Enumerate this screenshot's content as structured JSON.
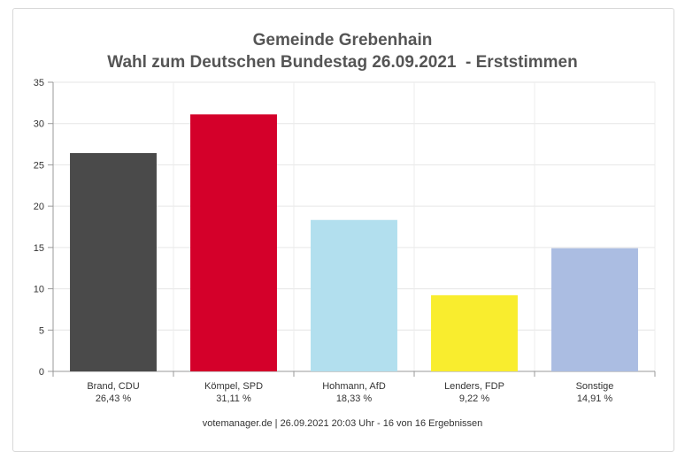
{
  "chart_data": {
    "type": "bar",
    "title": "Gemeinde Grebenhain",
    "subtitle": "Wahl zum Deutschen Bundestag 26.09.2021  - Erststimmen",
    "categories": [
      "Brand, CDU",
      "Kömpel, SPD",
      "Hohmann, AfD",
      "Lenders, FDP",
      "Sonstige"
    ],
    "value_labels": [
      "26,43 %",
      "31,11 %",
      "18,33 %",
      "9,22 %",
      "14,91 %"
    ],
    "values": [
      26.43,
      31.11,
      18.33,
      9.22,
      14.91
    ],
    "colors": [
      "#4a4a4a",
      "#d4002a",
      "#b2dfee",
      "#f9ed2e",
      "#abbde2"
    ],
    "ylim": [
      0,
      35
    ],
    "yticks": [
      0,
      5,
      10,
      15,
      20,
      25,
      30,
      35
    ],
    "grid": true,
    "legend": "none"
  },
  "footer": "votemanager.de | 26.09.2021 20:03 Uhr - 16 von 16 Ergebnissen"
}
